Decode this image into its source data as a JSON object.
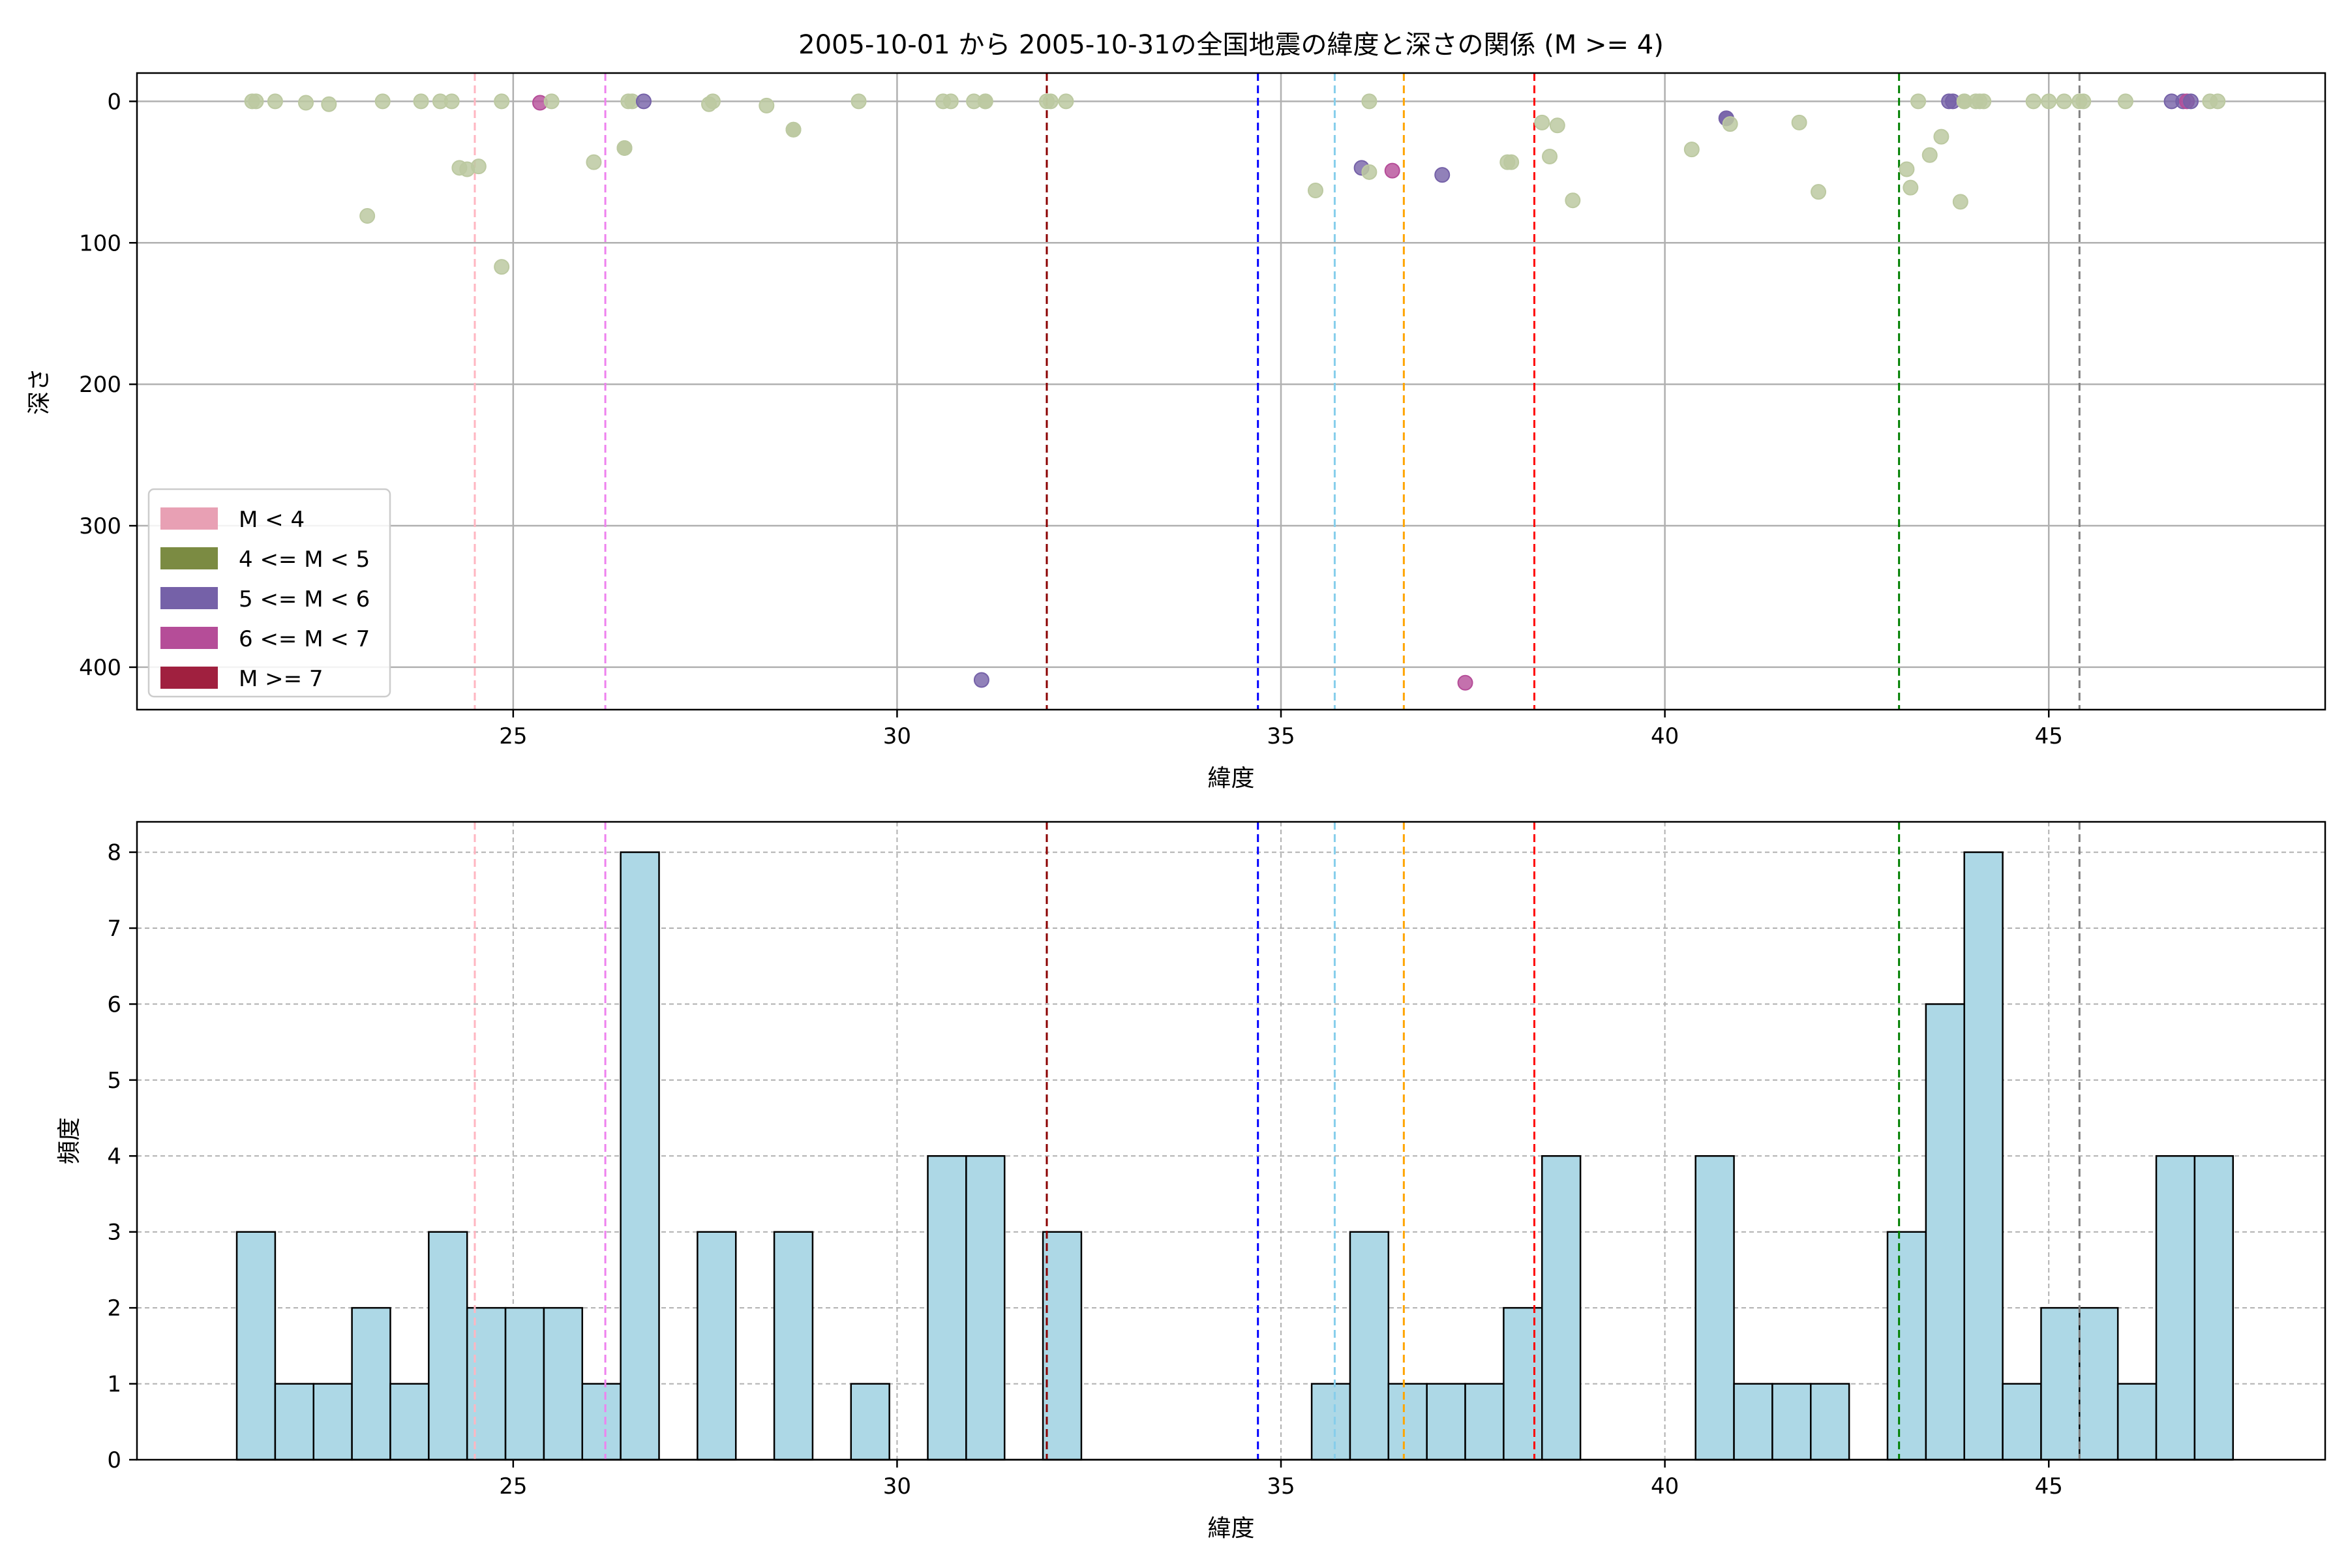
{
  "colors": {
    "grid": "#b0b0b0",
    "scatter_default": "#bcc9a1",
    "hist_fill": "#add8e6",
    "hist_edge": "#000000",
    "legend": [
      "#e8a0b4",
      "#7b8b42",
      "#7561a8",
      "#b54d98",
      "#a0203f"
    ]
  },
  "legend": {
    "items": [
      "M < 4",
      "4 <= M < 5",
      "5 <= M < 6",
      "6 <= M < 7",
      "M >= 7"
    ],
    "placement": "lower-left"
  },
  "chart_data": [
    {
      "type": "scatter",
      "title": "2005-10-01 から 2005-10-31の全国地震の緯度と深さの関係 (M >= 4)",
      "xlabel": "緯度",
      "ylabel": "深さ",
      "xlim": [
        20.1,
        48.6
      ],
      "ylim": [
        430,
        -20
      ],
      "y_inverted": true,
      "xticks": [
        25,
        30,
        35,
        40,
        45
      ],
      "yticks": [
        0,
        100,
        200,
        300,
        400
      ],
      "grid": true,
      "vlines": [
        {
          "x": 24.5,
          "color": "#ffb6c1"
        },
        {
          "x": 26.2,
          "color": "#ee82ee"
        },
        {
          "x": 31.95,
          "color": "#8b0000"
        },
        {
          "x": 34.7,
          "color": "#0000ff"
        },
        {
          "x": 35.7,
          "color": "#87ceeb"
        },
        {
          "x": 36.6,
          "color": "#ffa500"
        },
        {
          "x": 38.3,
          "color": "#ff0000"
        },
        {
          "x": 43.05,
          "color": "#008000"
        },
        {
          "x": 45.4,
          "color": "#808080"
        }
      ],
      "points": [
        {
          "x": 21.6,
          "y": 0,
          "m": "4-5"
        },
        {
          "x": 21.65,
          "y": 0,
          "m": "4-5"
        },
        {
          "x": 21.9,
          "y": 0,
          "m": "4-5"
        },
        {
          "x": 22.3,
          "y": 1,
          "m": "4-5"
        },
        {
          "x": 22.6,
          "y": 2,
          "m": "4-5"
        },
        {
          "x": 23.1,
          "y": 81,
          "m": "4-5"
        },
        {
          "x": 23.3,
          "y": 0,
          "m": "4-5"
        },
        {
          "x": 23.8,
          "y": 0,
          "m": "4-5"
        },
        {
          "x": 24.05,
          "y": 0,
          "m": "4-5"
        },
        {
          "x": 24.2,
          "y": 0,
          "m": "4-5"
        },
        {
          "x": 24.3,
          "y": 47,
          "m": "4-5"
        },
        {
          "x": 24.4,
          "y": 48,
          "m": "4-5"
        },
        {
          "x": 24.55,
          "y": 46,
          "m": "4-5"
        },
        {
          "x": 24.85,
          "y": 117,
          "m": "4-5"
        },
        {
          "x": 24.85,
          "y": 0,
          "m": "4-5"
        },
        {
          "x": 25.35,
          "y": 1,
          "m": "6-7"
        },
        {
          "x": 25.5,
          "y": 0,
          "m": "4-5"
        },
        {
          "x": 26.05,
          "y": 43,
          "m": "4-5"
        },
        {
          "x": 26.45,
          "y": 33,
          "m": "4-5"
        },
        {
          "x": 26.45,
          "y": 33,
          "m": "4-5"
        },
        {
          "x": 26.5,
          "y": 0,
          "m": "4-5"
        },
        {
          "x": 26.55,
          "y": 0,
          "m": "4-5"
        },
        {
          "x": 26.7,
          "y": 0,
          "m": "5-6"
        },
        {
          "x": 27.55,
          "y": 2,
          "m": "4-5"
        },
        {
          "x": 27.6,
          "y": 0,
          "m": "4-5"
        },
        {
          "x": 28.3,
          "y": 3,
          "m": "4-5"
        },
        {
          "x": 28.65,
          "y": 20,
          "m": "4-5"
        },
        {
          "x": 28.65,
          "y": 20,
          "m": "4-5"
        },
        {
          "x": 29.5,
          "y": 0,
          "m": "4-5"
        },
        {
          "x": 30.6,
          "y": 0,
          "m": "4-5"
        },
        {
          "x": 30.7,
          "y": 0,
          "m": "4-5"
        },
        {
          "x": 31.0,
          "y": 0,
          "m": "4-5"
        },
        {
          "x": 31.1,
          "y": 409,
          "m": "5-6"
        },
        {
          "x": 31.15,
          "y": 0,
          "m": "4-5"
        },
        {
          "x": 31.15,
          "y": 0,
          "m": "4-5"
        },
        {
          "x": 31.95,
          "y": 0,
          "m": "4-5"
        },
        {
          "x": 32.0,
          "y": 0,
          "m": "4-5"
        },
        {
          "x": 32.2,
          "y": 0,
          "m": "4-5"
        },
        {
          "x": 35.45,
          "y": 63,
          "m": "4-5"
        },
        {
          "x": 36.05,
          "y": 47,
          "m": "5-6"
        },
        {
          "x": 36.15,
          "y": 50,
          "m": "4-5"
        },
        {
          "x": 36.15,
          "y": 0,
          "m": "4-5"
        },
        {
          "x": 36.45,
          "y": 49,
          "m": "6-7"
        },
        {
          "x": 37.1,
          "y": 52,
          "m": "5-6"
        },
        {
          "x": 37.4,
          "y": 411,
          "m": "6-7"
        },
        {
          "x": 37.95,
          "y": 43,
          "m": "4-5"
        },
        {
          "x": 38.0,
          "y": 43,
          "m": "4-5"
        },
        {
          "x": 38.4,
          "y": 15,
          "m": "4-5"
        },
        {
          "x": 38.5,
          "y": 39,
          "m": "4-5"
        },
        {
          "x": 38.6,
          "y": 17,
          "m": "4-5"
        },
        {
          "x": 38.8,
          "y": 70,
          "m": "4-5"
        },
        {
          "x": 40.35,
          "y": 34,
          "m": "4-5"
        },
        {
          "x": 40.8,
          "y": 12,
          "m": "5-6"
        },
        {
          "x": 40.8,
          "y": 12,
          "m": "5-6"
        },
        {
          "x": 40.85,
          "y": 16,
          "m": "4-5"
        },
        {
          "x": 41.75,
          "y": 15,
          "m": "4-5"
        },
        {
          "x": 42.0,
          "y": 64,
          "m": "4-5"
        },
        {
          "x": 43.15,
          "y": 48,
          "m": "4-5"
        },
        {
          "x": 43.2,
          "y": 61,
          "m": "4-5"
        },
        {
          "x": 43.3,
          "y": 0,
          "m": "4-5"
        },
        {
          "x": 43.45,
          "y": 38,
          "m": "4-5"
        },
        {
          "x": 43.6,
          "y": 25,
          "m": "4-5"
        },
        {
          "x": 43.7,
          "y": 0,
          "m": "5-6"
        },
        {
          "x": 43.75,
          "y": 0,
          "m": "5-6"
        },
        {
          "x": 43.85,
          "y": 71,
          "m": "4-5"
        },
        {
          "x": 43.9,
          "y": 0,
          "m": "4-5"
        },
        {
          "x": 43.9,
          "y": 0,
          "m": "4-5"
        },
        {
          "x": 44.05,
          "y": 0,
          "m": "4-5"
        },
        {
          "x": 44.1,
          "y": 0,
          "m": "4-5"
        },
        {
          "x": 44.15,
          "y": 0,
          "m": "4-5"
        },
        {
          "x": 44.8,
          "y": 0,
          "m": "4-5"
        },
        {
          "x": 45.0,
          "y": 0,
          "m": "4-5"
        },
        {
          "x": 45.2,
          "y": 0,
          "m": "4-5"
        },
        {
          "x": 45.4,
          "y": 0,
          "m": "4-5"
        },
        {
          "x": 45.45,
          "y": 0,
          "m": "4-5"
        },
        {
          "x": 46.0,
          "y": 0,
          "m": "4-5"
        },
        {
          "x": 46.6,
          "y": 0,
          "m": "5-6"
        },
        {
          "x": 46.75,
          "y": 0,
          "m": "5-6"
        },
        {
          "x": 46.8,
          "y": 0,
          "m": "6-7"
        },
        {
          "x": 46.85,
          "y": 0,
          "m": "5-6"
        },
        {
          "x": 47.1,
          "y": 0,
          "m": "4-5"
        },
        {
          "x": 47.2,
          "y": 0,
          "m": "4-5"
        }
      ]
    },
    {
      "type": "bar",
      "title": "",
      "xlabel": "緯度",
      "ylabel": "頻度",
      "xlim": [
        20.1,
        48.6
      ],
      "ylim": [
        0,
        8.4
      ],
      "xticks": [
        25,
        30,
        35,
        40,
        45
      ],
      "yticks": [
        0,
        1,
        2,
        3,
        4,
        5,
        6,
        7,
        8
      ],
      "grid": true,
      "bin_start": 21.4,
      "bin_width": 0.5,
      "counts": [
        3,
        1,
        1,
        2,
        1,
        3,
        2,
        2,
        2,
        1,
        8,
        0,
        3,
        0,
        3,
        0,
        1,
        0,
        4,
        4,
        0,
        3,
        0,
        0,
        0,
        0,
        0,
        0,
        1,
        3,
        1,
        1,
        1,
        2,
        4,
        0,
        0,
        0,
        4,
        1,
        1,
        1,
        0,
        3,
        6,
        8,
        1,
        2,
        2,
        1,
        4,
        4
      ],
      "vlines": [
        {
          "x": 24.5,
          "color": "#ffb6c1"
        },
        {
          "x": 26.2,
          "color": "#ee82ee"
        },
        {
          "x": 31.95,
          "color": "#8b0000"
        },
        {
          "x": 34.7,
          "color": "#0000ff"
        },
        {
          "x": 35.7,
          "color": "#87ceeb"
        },
        {
          "x": 36.6,
          "color": "#ffa500"
        },
        {
          "x": 38.3,
          "color": "#ff0000"
        },
        {
          "x": 43.05,
          "color": "#008000"
        },
        {
          "x": 45.4,
          "color": "#808080"
        }
      ]
    }
  ]
}
